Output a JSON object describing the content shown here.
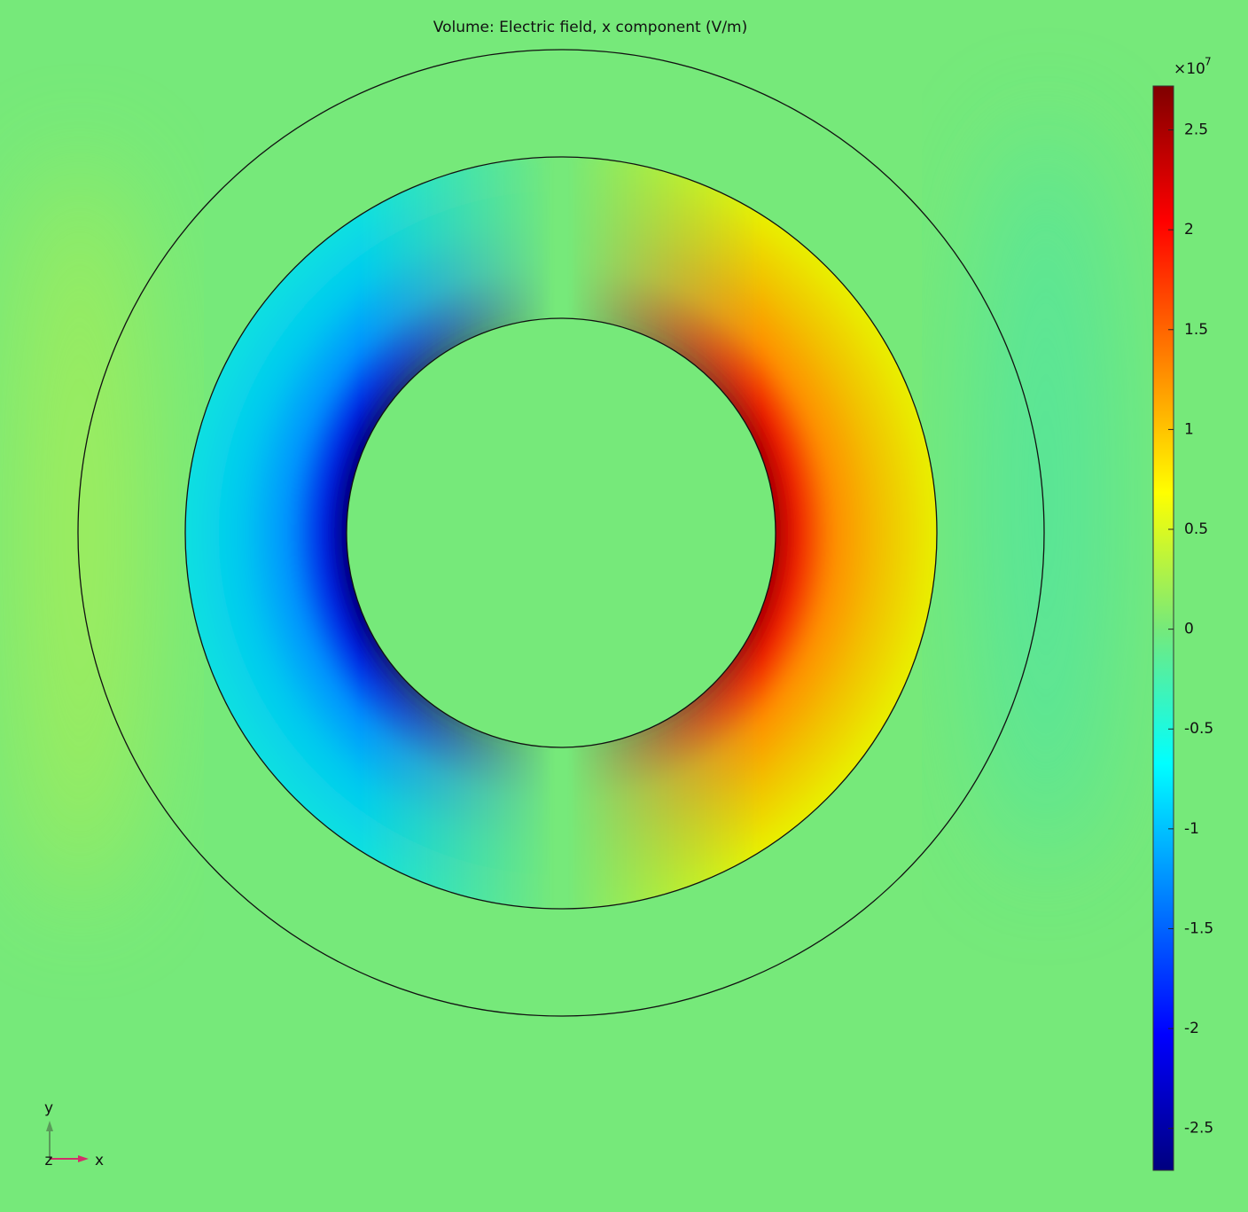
{
  "chart_data": {
    "type": "colormap-plot",
    "title": "Volume: Electric field, x component (V/m)",
    "colorbar": {
      "multiplier": "×10",
      "exponent": "7",
      "clim": [
        -2.71,
        2.72
      ],
      "ticks": [
        2.5,
        2,
        1.5,
        1,
        0.5,
        0,
        -0.5,
        -1,
        -1.5,
        -2,
        -2.5
      ],
      "colors": [
        "#00007f",
        "#0000ff",
        "#007fff",
        "#00ffff",
        "#76e97a",
        "#ffff00",
        "#ff7f00",
        "#ff0000",
        "#7f0000"
      ]
    },
    "axis_triad": {
      "x": "x",
      "y": "y",
      "z": "z"
    }
  }
}
